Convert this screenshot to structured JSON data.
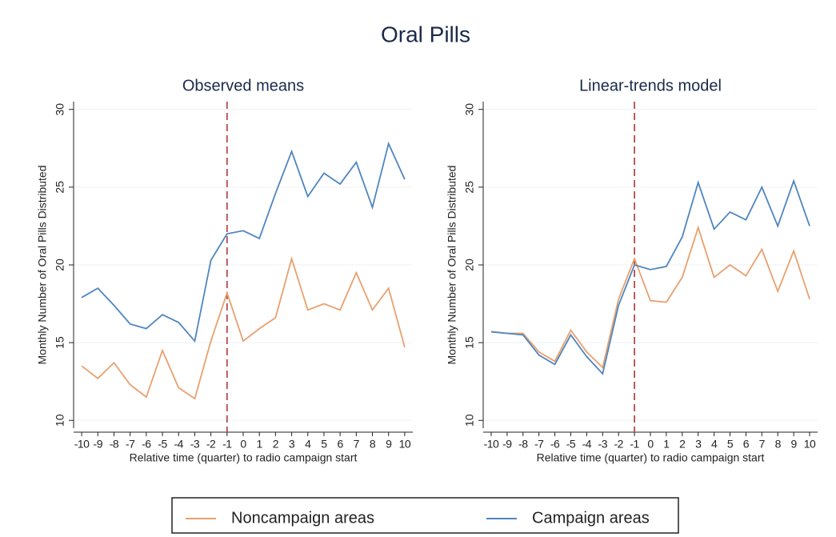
{
  "title": "Oral Pills",
  "chart_data": [
    {
      "type": "line",
      "title": "Observed means",
      "x_label": "Relative time (quarter) to radio campaign start",
      "y_label": "Monthly Number of Oral Pills Distributed",
      "x": [
        -10,
        -9,
        -8,
        -7,
        -6,
        -5,
        -4,
        -3,
        -2,
        -1,
        0,
        1,
        2,
        3,
        4,
        5,
        6,
        7,
        8,
        9,
        10
      ],
      "series": [
        {
          "name": "Noncampaign areas",
          "color": "#e9a06e",
          "values": [
            13.5,
            12.7,
            13.7,
            12.3,
            11.5,
            14.5,
            12.1,
            11.4,
            15.1,
            18.2,
            15.1,
            15.9,
            16.6,
            20.4,
            17.1,
            17.5,
            17.1,
            19.5,
            17.1,
            18.5,
            14.7
          ]
        },
        {
          "name": "Campaign areas",
          "color": "#4f86bf",
          "values": [
            17.9,
            18.5,
            17.4,
            16.2,
            15.9,
            16.8,
            16.3,
            15.1,
            20.3,
            22.0,
            22.2,
            21.7,
            24.6,
            27.3,
            24.4,
            25.9,
            25.2,
            26.6,
            23.7,
            27.8,
            25.5
          ]
        }
      ],
      "xlim": [
        -10.5,
        10.5
      ],
      "xticks": [
        -10,
        -9,
        -8,
        -7,
        -6,
        -5,
        -4,
        -3,
        -2,
        -1,
        0,
        1,
        2,
        3,
        4,
        5,
        6,
        7,
        8,
        9,
        10
      ],
      "ylim": [
        9.5,
        30.5
      ],
      "yticks": [
        10,
        15,
        20,
        25,
        30
      ],
      "grid": true,
      "reference_line_x": -1,
      "reference_line_color": "#b5494b"
    },
    {
      "type": "line",
      "title": "Linear-trends model",
      "x_label": "Relative time (quarter) to radio campaign start",
      "y_label": "Monthly Number of Oral Pills Distributed",
      "x": [
        -10,
        -9,
        -8,
        -7,
        -6,
        -5,
        -4,
        -3,
        -2,
        -1,
        0,
        1,
        2,
        3,
        4,
        5,
        6,
        7,
        8,
        9,
        10
      ],
      "series": [
        {
          "name": "Noncampaign areas",
          "color": "#e9a06e",
          "values": [
            15.7,
            15.6,
            15.6,
            14.4,
            13.8,
            15.8,
            14.4,
            13.4,
            17.8,
            20.4,
            17.7,
            17.6,
            19.2,
            22.4,
            19.2,
            20.0,
            19.3,
            21.0,
            18.3,
            20.9,
            17.8
          ]
        },
        {
          "name": "Campaign areas",
          "color": "#4f86bf",
          "values": [
            15.7,
            15.6,
            15.5,
            14.2,
            13.6,
            15.5,
            14.1,
            13.0,
            17.4,
            20.0,
            19.7,
            19.9,
            21.8,
            25.3,
            22.3,
            23.4,
            22.9,
            25.0,
            22.5,
            25.4,
            22.5
          ]
        }
      ],
      "xlim": [
        -10.5,
        10.5
      ],
      "xticks": [
        -10,
        -9,
        -8,
        -7,
        -6,
        -5,
        -4,
        -3,
        -2,
        -1,
        0,
        1,
        2,
        3,
        4,
        5,
        6,
        7,
        8,
        9,
        10
      ],
      "ylim": [
        9.5,
        30.5
      ],
      "yticks": [
        10,
        15,
        20,
        25,
        30
      ],
      "grid": true,
      "reference_line_x": -1,
      "reference_line_color": "#b5494b"
    }
  ]
}
